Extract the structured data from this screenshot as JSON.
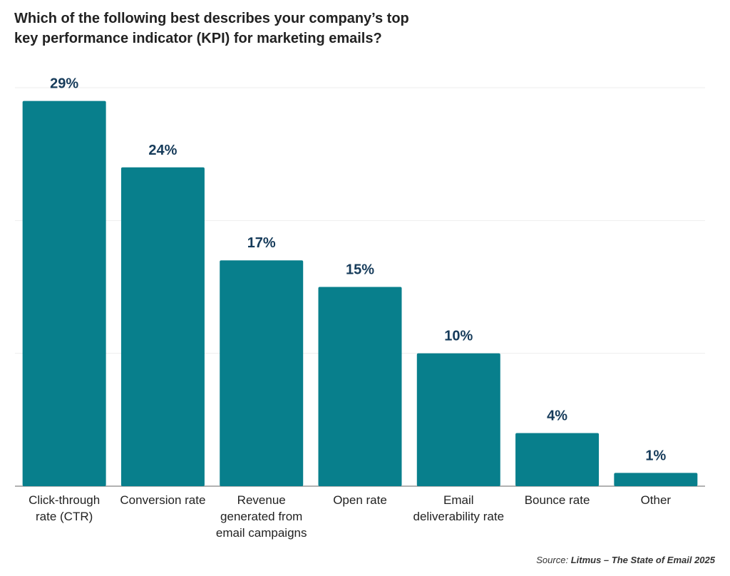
{
  "chart_data": {
    "type": "bar",
    "title": "Which of the following best describes your company’s top key performance indicator (KPI) for marketing emails?",
    "categories": [
      "Click-through rate (CTR)",
      "Conversion rate",
      "Revenue generated from email campaigns",
      "Open rate",
      "Email deliverability rate",
      "Bounce rate",
      "Other"
    ],
    "values": [
      29,
      24,
      17,
      15,
      10,
      4,
      1
    ],
    "value_labels": [
      "29%",
      "24%",
      "17%",
      "15%",
      "10%",
      "4%",
      "1%"
    ],
    "color": "#087f8c",
    "ylim": [
      0,
      30
    ],
    "yticks": [
      0,
      10,
      20,
      30
    ],
    "grid": true,
    "source_label": "Source:",
    "source": "Litmus – The State of Email 2025"
  }
}
